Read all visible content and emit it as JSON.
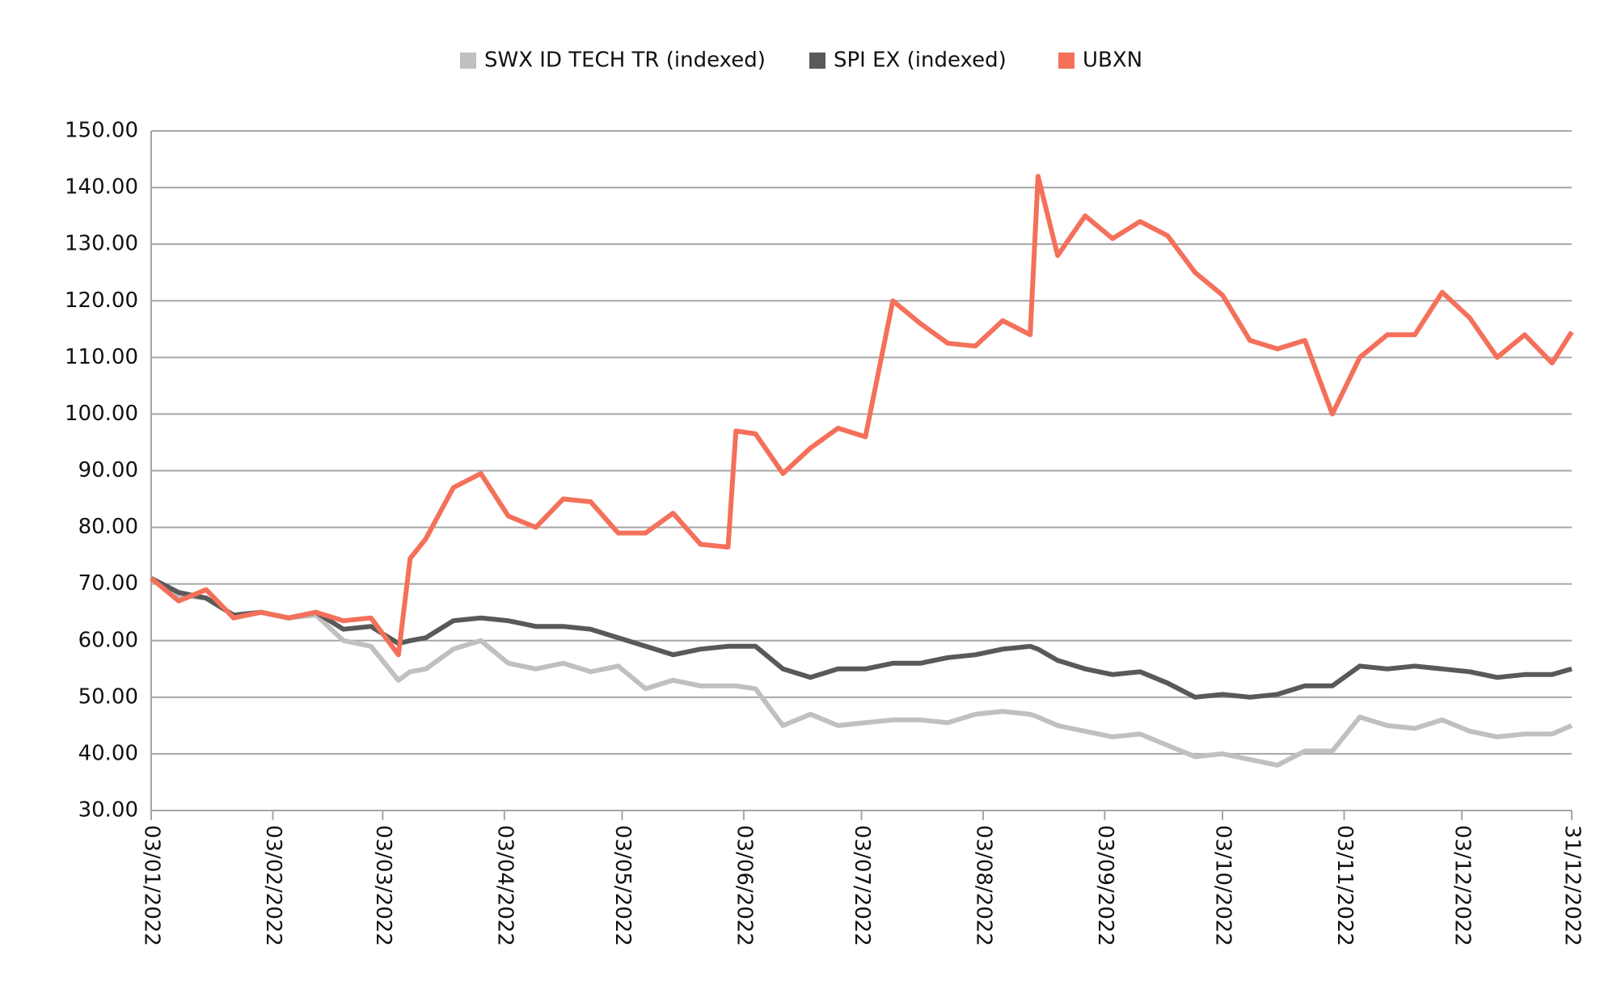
{
  "chart_data": {
    "type": "line",
    "x": [
      "03/01/2022",
      "10/01/2022",
      "17/01/2022",
      "24/01/2022",
      "31/01/2022",
      "07/02/2022",
      "14/02/2022",
      "21/02/2022",
      "28/02/2022",
      "07/03/2022",
      "10/03/2022",
      "14/03/2022",
      "21/03/2022",
      "28/03/2022",
      "04/04/2022",
      "11/04/2022",
      "18/04/2022",
      "25/04/2022",
      "02/05/2022",
      "09/05/2022",
      "16/05/2022",
      "23/05/2022",
      "30/05/2022",
      "01/06/2022",
      "06/06/2022",
      "13/06/2022",
      "20/06/2022",
      "27/06/2022",
      "04/07/2022",
      "11/07/2022",
      "18/07/2022",
      "25/07/2022",
      "01/08/2022",
      "08/08/2022",
      "15/08/2022",
      "17/08/2022",
      "22/08/2022",
      "29/08/2022",
      "05/09/2022",
      "12/09/2022",
      "19/09/2022",
      "26/09/2022",
      "03/10/2022",
      "10/10/2022",
      "17/10/2022",
      "24/10/2022",
      "31/10/2022",
      "07/11/2022",
      "14/11/2022",
      "21/11/2022",
      "28/11/2022",
      "05/12/2022",
      "12/12/2022",
      "19/12/2022",
      "26/12/2022",
      "31/12/2022"
    ],
    "series": [
      {
        "name": "SWX ID TECH TR (indexed)",
        "color": "#c0c0c0",
        "values": [
          71,
          68,
          67.5,
          64.5,
          65,
          64,
          64.5,
          60,
          59,
          53,
          54.5,
          55,
          58.5,
          60,
          56,
          55,
          56,
          54.5,
          55.5,
          51.5,
          53,
          52,
          52,
          52,
          51.5,
          45,
          47,
          45,
          45.5,
          46,
          46,
          45.5,
          47,
          47.5,
          47,
          46.5,
          45,
          44,
          43,
          43.5,
          41.5,
          39.5,
          40,
          39,
          38,
          40.5,
          40.5,
          46.5,
          45,
          44.5,
          46,
          44,
          43,
          43.5,
          43.5,
          45
        ]
      },
      {
        "name": "SPI EX (indexed)",
        "color": "#595959",
        "values": [
          71,
          68.5,
          67.5,
          64.5,
          65,
          64,
          65,
          62,
          62.5,
          59.5,
          60,
          60.5,
          63.5,
          64,
          63.5,
          62.5,
          62.5,
          62,
          60.5,
          59,
          57.5,
          58.5,
          59,
          59,
          59,
          55,
          53.5,
          55,
          55,
          56,
          56,
          57,
          57.5,
          58.5,
          59,
          58.5,
          56.5,
          55,
          54,
          54.5,
          52.5,
          50,
          50.5,
          50,
          50.5,
          52,
          52,
          55.5,
          55,
          55.5,
          55,
          54.5,
          53.5,
          54,
          54,
          55
        ]
      },
      {
        "name": "UBXN",
        "color": "#f4705a",
        "values": [
          71,
          67,
          69,
          64,
          65,
          64,
          65,
          63.5,
          64,
          57.5,
          74.5,
          78,
          87,
          89.5,
          82,
          80,
          85,
          84.5,
          79,
          79,
          82.5,
          77,
          76.5,
          97,
          96.5,
          89.5,
          94,
          97.5,
          96,
          120,
          116,
          112.5,
          112,
          116.5,
          114,
          142,
          128,
          135,
          131,
          134,
          131.5,
          125,
          121,
          113,
          111.5,
          113,
          100,
          110,
          114,
          114,
          121.5,
          117,
          110,
          114,
          109,
          114.5
        ]
      }
    ],
    "xlim": [
      "03/01/2022",
      "31/12/2022"
    ],
    "xticks": [
      "03/01/2022",
      "03/02/2022",
      "03/03/2022",
      "03/04/2022",
      "03/05/2022",
      "03/06/2022",
      "03/07/2022",
      "03/08/2022",
      "03/09/2022",
      "03/10/2022",
      "03/11/2022",
      "03/12/2022",
      "31/12/2022"
    ],
    "ylim": [
      30,
      150
    ],
    "yticks": [
      {
        "value": 30,
        "label": "30.00"
      },
      {
        "value": 40,
        "label": "40.00"
      },
      {
        "value": 50,
        "label": "50.00"
      },
      {
        "value": 60,
        "label": "60.00"
      },
      {
        "value": 70,
        "label": "70.00"
      },
      {
        "value": 80,
        "label": "80.00"
      },
      {
        "value": 90,
        "label": "90.00"
      },
      {
        "value": 100,
        "label": "100.00"
      },
      {
        "value": 110,
        "label": "110.00"
      },
      {
        "value": 120,
        "label": "120.00"
      },
      {
        "value": 130,
        "label": "130.00"
      },
      {
        "value": 140,
        "label": "140.00"
      },
      {
        "value": 150,
        "label": "150.00"
      }
    ],
    "grid": true,
    "legend": "top"
  }
}
